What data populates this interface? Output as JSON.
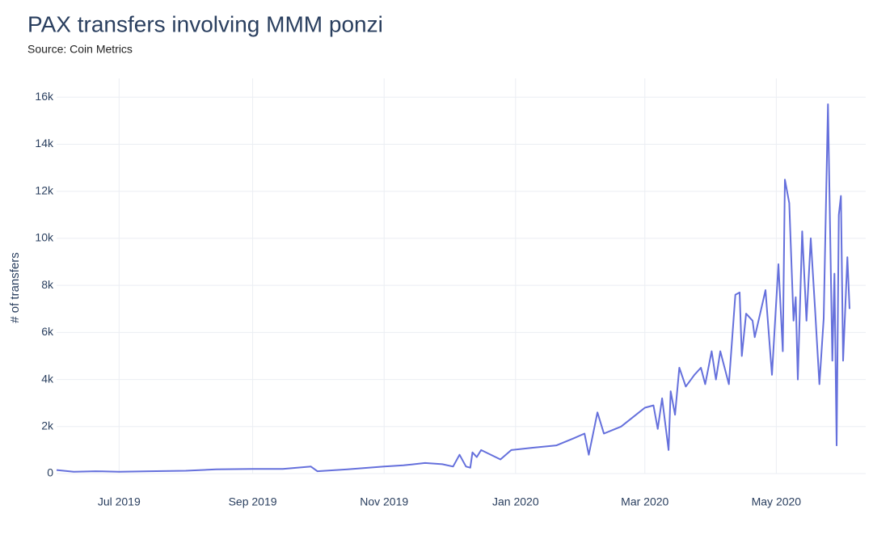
{
  "chart_data": {
    "type": "line",
    "title": "PAX transfers involving MMM ponzi",
    "subtitle": "Source: Coin Metrics",
    "y_label": "# of transfers",
    "x": [
      "2019-06-02",
      "2019-06-10",
      "2019-06-20",
      "2019-07-01",
      "2019-07-15",
      "2019-08-01",
      "2019-08-15",
      "2019-09-01",
      "2019-09-15",
      "2019-09-28",
      "2019-10-01",
      "2019-10-15",
      "2019-11-01",
      "2019-11-10",
      "2019-11-20",
      "2019-11-28",
      "2019-12-03",
      "2019-12-06",
      "2019-12-09",
      "2019-12-11",
      "2019-12-12",
      "2019-12-14",
      "2019-12-16",
      "2019-12-25",
      "2019-12-30",
      "2020-01-09",
      "2020-01-20",
      "2020-01-28",
      "2020-02-02",
      "2020-02-04",
      "2020-02-08",
      "2020-02-11",
      "2020-02-19",
      "2020-03-01",
      "2020-03-05",
      "2020-03-07",
      "2020-03-09",
      "2020-03-12",
      "2020-03-13",
      "2020-03-15",
      "2020-03-17",
      "2020-03-20",
      "2020-03-24",
      "2020-03-27",
      "2020-03-29",
      "2020-04-01",
      "2020-04-03",
      "2020-04-05",
      "2020-04-09",
      "2020-04-12",
      "2020-04-14",
      "2020-04-15",
      "2020-04-17",
      "2020-04-20",
      "2020-04-21",
      "2020-04-24",
      "2020-04-26",
      "2020-04-29",
      "2020-05-02",
      "2020-05-04",
      "2020-05-05",
      "2020-05-07",
      "2020-05-09",
      "2020-05-10",
      "2020-05-11",
      "2020-05-13",
      "2020-05-15",
      "2020-05-17",
      "2020-05-19",
      "2020-05-21",
      "2020-05-23",
      "2020-05-25",
      "2020-05-27",
      "2020-05-28",
      "2020-05-29",
      "2020-05-30",
      "2020-05-31",
      "2020-06-01",
      "2020-06-03",
      "2020-06-04"
    ],
    "series": [
      {
        "name": "transfers",
        "color": "#6570dc",
        "values": [
          150,
          80,
          100,
          80,
          100,
          120,
          180,
          200,
          200,
          300,
          100,
          180,
          300,
          350,
          450,
          400,
          300,
          800,
          300,
          250,
          900,
          700,
          1000,
          600,
          1000,
          1100,
          1200,
          1500,
          1700,
          800,
          2600,
          1700,
          2000,
          2800,
          2900,
          1900,
          3200,
          1000,
          3500,
          2500,
          4500,
          3700,
          4200,
          4500,
          3800,
          5200,
          4000,
          5200,
          3800,
          7600,
          7700,
          5000,
          6800,
          6500,
          5800,
          7000,
          7800,
          4200,
          8900,
          5200,
          12500,
          11500,
          6500,
          7500,
          4000,
          10300,
          6500,
          10000,
          7000,
          3800,
          6600,
          15700,
          4800,
          8500,
          1200,
          11000,
          11800,
          4800,
          9200,
          7000
        ]
      }
    ],
    "xlim": [
      "2019-06-02",
      "2020-06-04"
    ],
    "xticks": [
      {
        "value": "2019-07-01",
        "label": "Jul 2019"
      },
      {
        "value": "2019-09-01",
        "label": "Sep 2019"
      },
      {
        "value": "2019-11-01",
        "label": "Nov 2019"
      },
      {
        "value": "2020-01-01",
        "label": "Jan 2020"
      },
      {
        "value": "2020-03-01",
        "label": "Mar 2020"
      },
      {
        "value": "2020-05-01",
        "label": "May 2020"
      }
    ],
    "ylim": [
      0,
      16800
    ],
    "yticks": [
      0,
      {
        "value": 2000,
        "label": "2k"
      },
      {
        "value": 4000,
        "label": "4k"
      },
      {
        "value": 6000,
        "label": "6k"
      },
      {
        "value": 8000,
        "label": "8k"
      },
      {
        "value": 10000,
        "label": "10k"
      },
      {
        "value": 12000,
        "label": "12k"
      },
      {
        "value": 14000,
        "label": "14k"
      },
      {
        "value": 16000,
        "label": "16k"
      }
    ],
    "grid": true
  }
}
